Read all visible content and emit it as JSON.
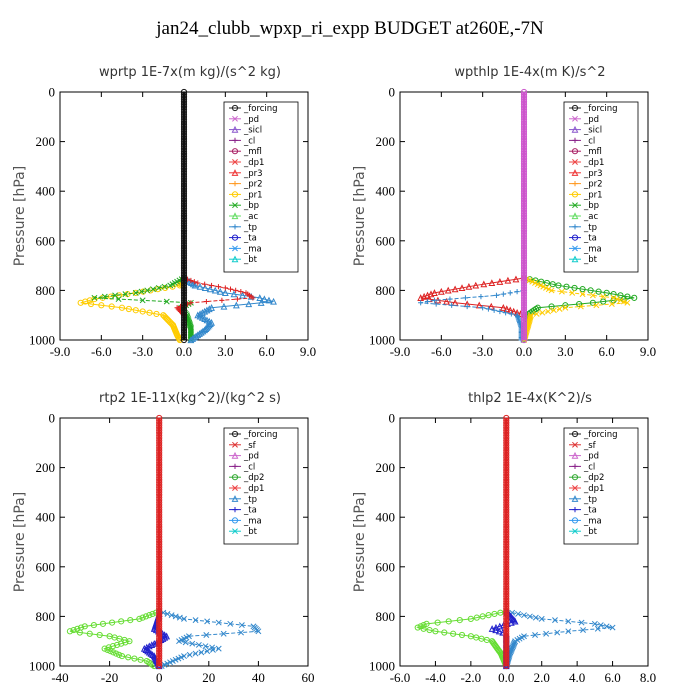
{
  "title": "jan24_clubb_wpxp_ri_expp  BUDGET at260E,-7N",
  "chart_data": [
    {
      "type": "line",
      "title": "wprtp  1E-7x(m kg)/(s^2 kg)",
      "ylabel": "Pressure [hPa]",
      "xlim": [
        -9,
        9
      ],
      "ylim": [
        1000,
        0
      ],
      "xticks": [
        "-9.0",
        "-6.0",
        "-3.0",
        "0.0",
        "3.0",
        "6.0",
        "9.0"
      ],
      "yticks": [
        "0",
        "200",
        "400",
        "600",
        "800",
        "1000"
      ],
      "legend_position": "top-right",
      "legend": [
        "_forcing",
        "_pd",
        "_sicl",
        "_cl",
        "_mfl",
        "_dp1",
        "_pr3",
        "_pr2",
        "_pr1",
        "_bp",
        "_ac",
        "_tp",
        "_ta",
        "_ma",
        "_bt"
      ],
      "series": [
        {
          "name": "_pr1",
          "color": "#ffcc00",
          "y": [
            750,
            780,
            810,
            835,
            850,
            870,
            900,
            940,
            980,
            1000
          ],
          "x": [
            0,
            -0.3,
            -3.5,
            -6.5,
            -7.5,
            -4.5,
            -1.5,
            -0.8,
            -0.5,
            -0.3
          ]
        },
        {
          "name": "_bp",
          "color": "#22aa22",
          "y": [
            750,
            780,
            810,
            830,
            850,
            870,
            900,
            950,
            1000
          ],
          "x": [
            0,
            -1.0,
            -3.5,
            -6.5,
            0.5,
            -0.2,
            0.2,
            0.5,
            0.5
          ]
        },
        {
          "name": "_tp",
          "color": "#3388cc",
          "y": [
            750,
            780,
            810,
            830,
            845,
            870,
            900,
            930,
            960,
            1000
          ],
          "x": [
            0,
            0.8,
            3.0,
            5.5,
            6.5,
            2.0,
            1.0,
            2.0,
            1.5,
            0.5
          ]
        },
        {
          "name": "_pr3",
          "color": "#dd2222",
          "y": [
            750,
            770,
            790,
            810,
            830,
            850,
            870,
            900
          ],
          "x": [
            0,
            1.0,
            3.0,
            4.5,
            5.0,
            0.5,
            -0.5,
            0
          ]
        },
        {
          "name": "_forcing",
          "color": "#111111",
          "y": [
            0,
            200,
            400,
            600,
            800,
            1000
          ],
          "x": [
            0,
            0,
            0,
            0,
            0,
            0
          ]
        }
      ]
    },
    {
      "type": "line",
      "title": "wpthlp  1E-4x(m K)/s^2",
      "ylabel": "Pressure [hPa]",
      "xlim": [
        -9,
        9
      ],
      "ylim": [
        1000,
        0
      ],
      "xticks": [
        "-9.0",
        "-6.0",
        "-3.0",
        "0.0",
        "3.0",
        "6.0",
        "9.0"
      ],
      "yticks": [
        "0",
        "200",
        "400",
        "600",
        "800",
        "1000"
      ],
      "legend_position": "top-right",
      "legend": [
        "_forcing",
        "_pd",
        "_sicl",
        "_cl",
        "_mfl",
        "_dp1",
        "_pr3",
        "_pr2",
        "_pr1",
        "_bp",
        "_ac",
        "_tp",
        "_ta",
        "_ma",
        "_bt"
      ],
      "series": [
        {
          "name": "_bp",
          "color": "#22aa22",
          "y": [
            750,
            780,
            810,
            830,
            850,
            870,
            900,
            1000
          ],
          "x": [
            0,
            2.5,
            6.0,
            8.0,
            5.0,
            1.0,
            0.2,
            0
          ]
        },
        {
          "name": "_pr1",
          "color": "#ffcc00",
          "y": [
            750,
            800,
            830,
            850,
            870,
            900,
            1000
          ],
          "x": [
            0,
            2.0,
            6.5,
            7.5,
            3.0,
            0.5,
            0
          ]
        },
        {
          "name": "_pr3",
          "color": "#dd2222",
          "y": [
            750,
            780,
            810,
            830,
            850,
            870,
            900
          ],
          "x": [
            0,
            -3.5,
            -6.5,
            -7.5,
            -5.0,
            -1.5,
            0
          ]
        },
        {
          "name": "_tp",
          "color": "#3388cc",
          "y": [
            800,
            820,
            840,
            850,
            870,
            900,
            950,
            1000
          ],
          "x": [
            0,
            -2.0,
            -6.5,
            -7.5,
            -3.0,
            -0.5,
            -0.2,
            -0.2
          ]
        },
        {
          "name": "_forcing",
          "color": "#cc55cc",
          "y": [
            0,
            200,
            400,
            600,
            800,
            1000
          ],
          "x": [
            0,
            0,
            0,
            0,
            0,
            0
          ]
        }
      ]
    },
    {
      "type": "line",
      "title": "rtp2  1E-11x(kg^2)/(kg^2 s)",
      "ylabel": "Pressure [hPa]",
      "xlim": [
        -40,
        60
      ],
      "ylim": [
        1000,
        0
      ],
      "xticks": [
        "-40",
        "-20",
        "0",
        "20",
        "40",
        "60"
      ],
      "yticks": [
        "0",
        "200",
        "400",
        "600",
        "800",
        "1000"
      ],
      "legend_position": "top-right",
      "legend": [
        "_forcing",
        "_sf",
        "_pd",
        "_cl",
        "_dp2",
        "_dp1",
        "_tp",
        "_ta",
        "_ma",
        "_bt"
      ],
      "series": [
        {
          "name": "_dp1",
          "color": "#66dd33",
          "y": [
            780,
            810,
            840,
            860,
            880,
            900,
            930,
            960,
            980,
            1000
          ],
          "x": [
            0,
            -8,
            -30,
            -36,
            -20,
            -12,
            -22,
            -15,
            -5,
            -2
          ]
        },
        {
          "name": "_tp",
          "color": "#3388cc",
          "y": [
            780,
            810,
            840,
            860,
            880,
            900,
            930,
            960,
            1000
          ],
          "x": [
            0,
            10,
            38,
            40,
            12,
            8,
            24,
            10,
            1
          ]
        },
        {
          "name": "_ta",
          "color": "#2222cc",
          "y": [
            790,
            850,
            880,
            900,
            930,
            960,
            1000
          ],
          "x": [
            0,
            -2,
            3,
            0,
            -6,
            -2,
            0
          ]
        },
        {
          "name": "_forcing",
          "color": "#dd2222",
          "y": [
            0,
            200,
            400,
            600,
            800,
            1000
          ],
          "x": [
            0,
            0,
            0,
            0,
            0,
            0
          ]
        }
      ]
    },
    {
      "type": "line",
      "title": "thlp2  1E-4x(K^2)/s",
      "ylabel": "Pressure [hPa]",
      "xlim": [
        -6,
        8
      ],
      "ylim": [
        1000,
        0
      ],
      "xticks": [
        "-6.0",
        "-4.0",
        "-2.0",
        "0.0",
        "2.0",
        "4.0",
        "6.0",
        "8.0"
      ],
      "yticks": [
        "0",
        "200",
        "400",
        "600",
        "800",
        "1000"
      ],
      "legend_position": "top-right",
      "legend": [
        "_forcing",
        "_sf",
        "_pd",
        "_cl",
        "_dp2",
        "_dp1",
        "_tp",
        "_ta",
        "_ma",
        "_bt"
      ],
      "series": [
        {
          "name": "_dp1",
          "color": "#66dd33",
          "y": [
            780,
            810,
            830,
            845,
            860,
            880,
            900,
            950,
            1000
          ],
          "x": [
            0,
            -2.0,
            -4.5,
            -5.0,
            -4.0,
            -2.0,
            -0.8,
            -0.3,
            0
          ]
        },
        {
          "name": "_tp",
          "color": "#3388cc",
          "y": [
            780,
            810,
            830,
            845,
            860,
            880,
            900,
            950,
            1000
          ],
          "x": [
            0,
            2.0,
            5.0,
            6.0,
            3.5,
            1.0,
            0.5,
            0.2,
            0
          ]
        },
        {
          "name": "_ta",
          "color": "#2222cc",
          "y": [
            780,
            820,
            850,
            870,
            1000
          ],
          "x": [
            0,
            0.5,
            -0.8,
            0,
            0
          ]
        },
        {
          "name": "_forcing",
          "color": "#dd2222",
          "y": [
            0,
            200,
            400,
            600,
            800,
            1000
          ],
          "x": [
            0,
            0,
            0,
            0,
            0,
            0
          ]
        }
      ]
    }
  ],
  "legend_colors": {
    "_forcing": "#222222",
    "_pd": "#cc66cc",
    "_sicl": "#8855cc",
    "_cl": "#882288",
    "_mfl": "#aa2266",
    "_dp1": "#ee4444",
    "_pr3": "#ee3333",
    "_pr2": "#ff9922",
    "_pr1": "#ffcc00",
    "_bp": "#22aa22",
    "_ac": "#66dd66",
    "_tp": "#3388cc",
    "_ta": "#2222cc",
    "_ma": "#3399ee",
    "_bt": "#11cccc",
    "_sf": "#dd3333",
    "_dp2": "#33aa33"
  }
}
